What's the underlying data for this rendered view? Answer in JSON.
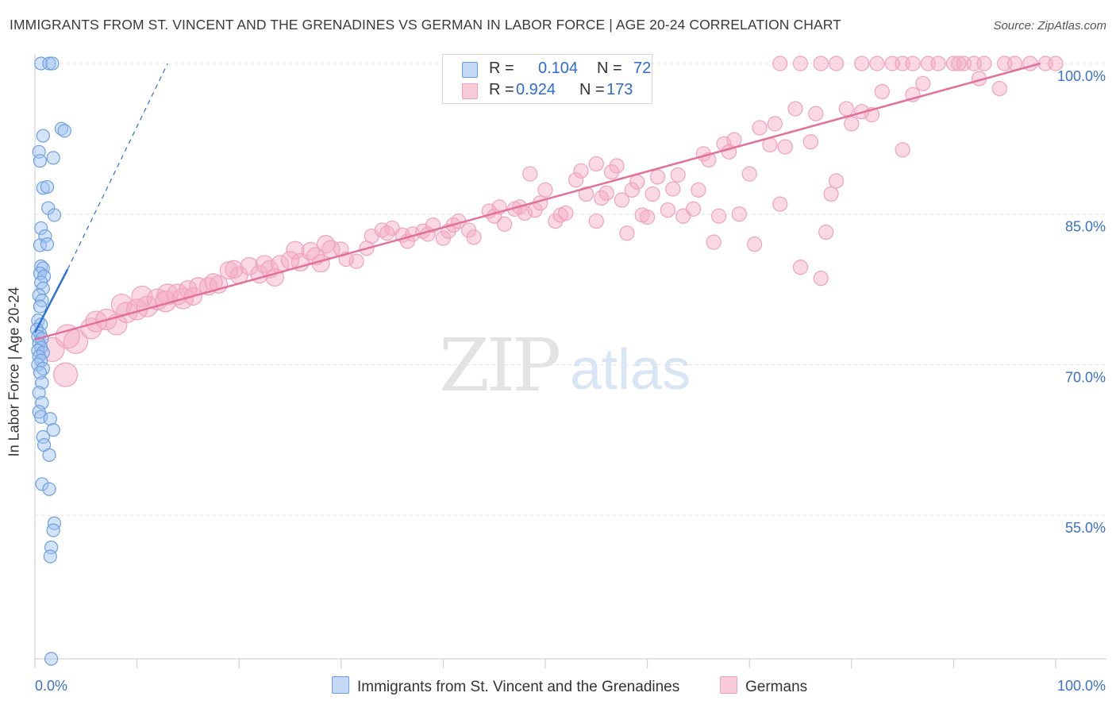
{
  "title": "IMMIGRANTS FROM ST. VINCENT AND THE GRENADINES VS GERMAN IN LABOR FORCE | AGE 20-24 CORRELATION CHART",
  "source": "Source: ZipAtlas.com",
  "watermark": {
    "zip": "ZIP",
    "atlas": "atlas"
  },
  "legend": {
    "r_label": "R =",
    "n_label": "N =",
    "rows": [
      {
        "r": "0.104",
        "n": "72"
      },
      {
        "r": "0.924",
        "n": "173"
      }
    ]
  },
  "bottom_legend": [
    "Immigrants from St. Vincent and the Grenadines",
    "Germans"
  ],
  "chart_data": {
    "type": "scatter",
    "title": "IMMIGRANTS FROM ST. VINCENT AND THE GRENADINES VS GERMAN IN LABOR FORCE | AGE 20-24 CORRELATION CHART",
    "ylabel": "In Labor Force | Age 20-24",
    "xlabel": "",
    "x_tick_labels": [
      "0.0%",
      "100.0%"
    ],
    "y_tick_labels": [
      "55.0%",
      "70.0%",
      "85.0%",
      "100.0%"
    ],
    "y_ticks": [
      55,
      70,
      85,
      100
    ],
    "xlim": [
      0,
      100
    ],
    "ylim": [
      40,
      101.5
    ],
    "grid": true,
    "colors": {
      "blue": "#6e9fe0",
      "blue_line": "#2f6fd8",
      "pink": "#f0a2bb",
      "pink_line": "#e2709a",
      "axis_text": "#3a72c9"
    },
    "series": [
      {
        "name": "Immigrants from St. Vincent and the Grenadines",
        "r": 0.104,
        "n": 72,
        "trend": {
          "x0": 0.0,
          "y0": 73.2,
          "x1": 3.2,
          "y1": 79.5,
          "dash_x1": 13.0,
          "dash_y1": 100.0
        },
        "points": [
          [
            0.6,
            100
          ],
          [
            1.4,
            100
          ],
          [
            1.7,
            100
          ],
          [
            0.8,
            92.8
          ],
          [
            2.6,
            93.5
          ],
          [
            2.9,
            93.3
          ],
          [
            0.4,
            91.2
          ],
          [
            0.5,
            90.3
          ],
          [
            1.8,
            90.6
          ],
          [
            0.8,
            87.6
          ],
          [
            1.2,
            87.7
          ],
          [
            1.3,
            85.6
          ],
          [
            1.9,
            84.9
          ],
          [
            0.6,
            83.6
          ],
          [
            1.0,
            82.8
          ],
          [
            0.5,
            81.9
          ],
          [
            1.2,
            82.0
          ],
          [
            0.6,
            79.8
          ],
          [
            0.8,
            79.6
          ],
          [
            0.5,
            79.1
          ],
          [
            0.9,
            78.8
          ],
          [
            0.6,
            78.2
          ],
          [
            0.8,
            77.6
          ],
          [
            0.4,
            76.9
          ],
          [
            0.7,
            76.4
          ],
          [
            0.5,
            75.8
          ],
          [
            0.3,
            74.4
          ],
          [
            0.6,
            74.0
          ],
          [
            0.2,
            73.5
          ],
          [
            0.5,
            73.1
          ],
          [
            0.3,
            72.8
          ],
          [
            0.7,
            72.6
          ],
          [
            0.4,
            72.1
          ],
          [
            0.6,
            71.7
          ],
          [
            0.3,
            71.4
          ],
          [
            0.8,
            71.2
          ],
          [
            0.4,
            70.8
          ],
          [
            0.6,
            70.4
          ],
          [
            0.3,
            70.0
          ],
          [
            0.8,
            69.6
          ],
          [
            0.5,
            69.2
          ],
          [
            0.7,
            68.2
          ],
          [
            0.4,
            67.2
          ],
          [
            0.7,
            66.2
          ],
          [
            0.4,
            65.3
          ],
          [
            0.6,
            64.8
          ],
          [
            1.5,
            64.6
          ],
          [
            1.8,
            63.5
          ],
          [
            0.8,
            62.8
          ],
          [
            0.9,
            62.0
          ],
          [
            1.4,
            61.0
          ],
          [
            0.7,
            58.1
          ],
          [
            1.4,
            57.6
          ],
          [
            1.9,
            54.2
          ],
          [
            1.8,
            53.5
          ],
          [
            1.6,
            51.8
          ],
          [
            1.5,
            50.9
          ],
          [
            1.6,
            40.7
          ]
        ]
      },
      {
        "name": "Germans",
        "r": 0.924,
        "n": 173,
        "trend": {
          "x0": 0.0,
          "y0": 72.5,
          "x1": 98.5,
          "y1": 100.0
        },
        "points": [
          [
            3.0,
            69.0
          ],
          [
            1.7,
            71.5
          ],
          [
            4.0,
            72.3
          ],
          [
            3.2,
            72.8
          ],
          [
            5.5,
            73.6
          ],
          [
            6.0,
            74.3
          ],
          [
            7.0,
            74.5
          ],
          [
            8.0,
            74.0
          ],
          [
            9.0,
            75.2
          ],
          [
            8.5,
            76.0
          ],
          [
            10.0,
            75.5
          ],
          [
            11.0,
            75.8
          ],
          [
            10.5,
            76.8
          ],
          [
            12.0,
            76.5
          ],
          [
            13.0,
            77.0
          ],
          [
            12.8,
            76.3
          ],
          [
            14.0,
            77.0
          ],
          [
            14.5,
            76.6
          ],
          [
            15.0,
            77.5
          ],
          [
            16.0,
            77.8
          ],
          [
            15.5,
            76.8
          ],
          [
            17.0,
            77.8
          ],
          [
            18.0,
            78.0
          ],
          [
            19.0,
            79.4
          ],
          [
            17.5,
            78.2
          ],
          [
            20.0,
            78.9
          ],
          [
            19.5,
            79.5
          ],
          [
            21.0,
            79.8
          ],
          [
            22.0,
            79.0
          ],
          [
            22.5,
            80.0
          ],
          [
            23.0,
            79.5
          ],
          [
            24.0,
            80.0
          ],
          [
            23.5,
            78.7
          ],
          [
            25.0,
            80.4
          ],
          [
            25.5,
            81.4
          ],
          [
            26.0,
            80.2
          ],
          [
            27.0,
            81.3
          ],
          [
            27.5,
            80.8
          ],
          [
            28.0,
            80.1
          ],
          [
            28.5,
            82.0
          ],
          [
            29.0,
            81.5
          ],
          [
            30.0,
            81.5
          ],
          [
            30.5,
            80.5
          ],
          [
            31.5,
            80.3
          ],
          [
            32.5,
            81.6
          ],
          [
            33.0,
            82.8
          ],
          [
            34.0,
            83.4
          ],
          [
            34.5,
            83.1
          ],
          [
            35.0,
            83.6
          ],
          [
            36.0,
            82.9
          ],
          [
            36.5,
            82.3
          ],
          [
            37.0,
            83.0
          ],
          [
            38.0,
            83.3
          ],
          [
            38.5,
            83.0
          ],
          [
            39.0,
            83.9
          ],
          [
            40.0,
            82.6
          ],
          [
            40.5,
            83.3
          ],
          [
            41.0,
            83.9
          ],
          [
            41.5,
            84.3
          ],
          [
            42.5,
            83.4
          ],
          [
            43.0,
            82.7
          ],
          [
            44.5,
            85.3
          ],
          [
            45.0,
            84.8
          ],
          [
            45.5,
            85.7
          ],
          [
            46.0,
            84.0
          ],
          [
            47.0,
            85.5
          ],
          [
            47.5,
            85.7
          ],
          [
            48.0,
            85.1
          ],
          [
            49.0,
            85.4
          ],
          [
            49.5,
            86.1
          ],
          [
            48.5,
            89.0
          ],
          [
            50.0,
            87.4
          ],
          [
            51.0,
            84.3
          ],
          [
            51.5,
            84.9
          ],
          [
            52.0,
            85.1
          ],
          [
            53.0,
            88.4
          ],
          [
            53.5,
            89.3
          ],
          [
            54.0,
            87.0
          ],
          [
            55.0,
            84.3
          ],
          [
            55.5,
            86.6
          ],
          [
            55.0,
            90.0
          ],
          [
            56.0,
            87.1
          ],
          [
            56.5,
            89.2
          ],
          [
            57.0,
            89.8
          ],
          [
            57.5,
            86.4
          ],
          [
            58.0,
            83.1
          ],
          [
            58.5,
            87.4
          ],
          [
            59.0,
            88.2
          ],
          [
            59.5,
            84.9
          ],
          [
            60.0,
            84.7
          ],
          [
            60.5,
            87.0
          ],
          [
            61.0,
            88.7
          ],
          [
            62.0,
            85.4
          ],
          [
            62.5,
            87.5
          ],
          [
            63.0,
            88.9
          ],
          [
            63.5,
            84.8
          ],
          [
            64.5,
            85.5
          ],
          [
            65.0,
            87.4
          ],
          [
            65.5,
            91.0
          ],
          [
            66.0,
            90.4
          ],
          [
            66.5,
            82.2
          ],
          [
            67.0,
            84.8
          ],
          [
            67.5,
            92.0
          ],
          [
            68.0,
            91.2
          ],
          [
            68.5,
            92.4
          ],
          [
            69.0,
            85.0
          ],
          [
            70.0,
            89.0
          ],
          [
            70.5,
            82.0
          ],
          [
            71.0,
            93.6
          ],
          [
            72.0,
            91.9
          ],
          [
            72.5,
            94.0
          ],
          [
            73.0,
            86.0
          ],
          [
            73.5,
            91.7
          ],
          [
            74.5,
            95.5
          ],
          [
            75.0,
            79.7
          ],
          [
            76.0,
            92.2
          ],
          [
            76.5,
            95.0
          ],
          [
            77.5,
            83.2
          ],
          [
            77.0,
            78.6
          ],
          [
            78.5,
            88.3
          ],
          [
            78.0,
            87.0
          ],
          [
            79.5,
            95.5
          ],
          [
            80.0,
            94.0
          ],
          [
            81.0,
            95.2
          ],
          [
            82.0,
            94.9
          ],
          [
            83.0,
            97.2
          ],
          [
            85.0,
            91.4
          ],
          [
            86.0,
            96.9
          ],
          [
            87.0,
            98.0
          ],
          [
            90.0,
            100
          ],
          [
            91.0,
            100
          ],
          [
            92.5,
            98.5
          ],
          [
            93.0,
            100
          ],
          [
            94.5,
            97.5
          ],
          [
            95.0,
            100
          ],
          [
            96.0,
            100
          ],
          [
            97.5,
            100
          ],
          [
            99.0,
            100
          ],
          [
            100.0,
            100
          ],
          [
            81.0,
            100
          ],
          [
            82.5,
            100
          ],
          [
            84.0,
            100
          ],
          [
            85.0,
            100
          ],
          [
            86.0,
            100
          ],
          [
            87.5,
            100
          ],
          [
            88.5,
            100
          ],
          [
            90.5,
            100
          ],
          [
            92.0,
            100
          ],
          [
            73.0,
            100
          ],
          [
            75.0,
            100
          ],
          [
            77.0,
            100
          ],
          [
            78.5,
            100
          ]
        ]
      }
    ]
  }
}
